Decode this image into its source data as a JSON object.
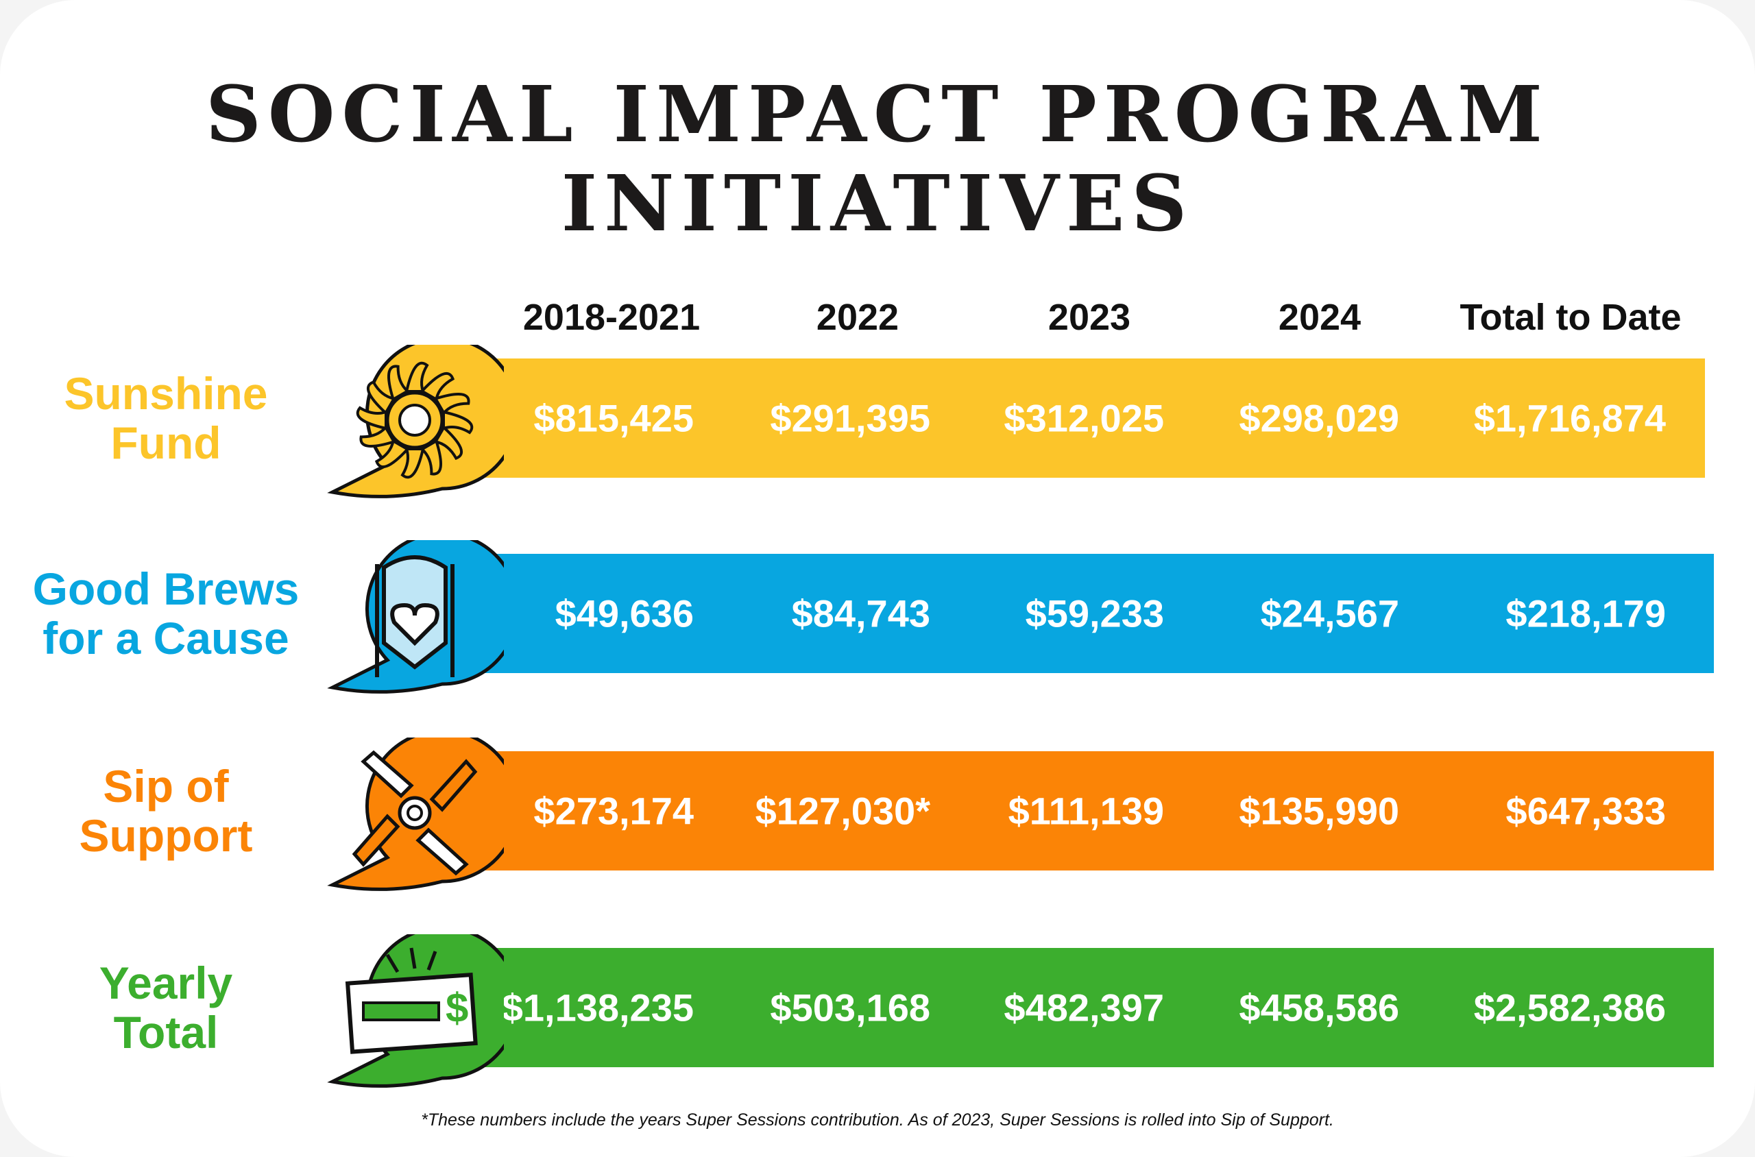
{
  "title": {
    "line1": "SOCIAL IMPACT PROGRAM",
    "line2": "INITIATIVES"
  },
  "columns": [
    "2018-2021",
    "2022",
    "2023",
    "2024",
    "Total to Date"
  ],
  "rows": [
    {
      "label1": "Sunshine",
      "label2": "Fund",
      "icon": "sun-icon",
      "color": "#FCC52A",
      "values": [
        "$815,425",
        "$291,395",
        "$312,025",
        "$298,029",
        "$1,716,874"
      ]
    },
    {
      "label1": "Good Brews",
      "label2": "for a Cause",
      "icon": "brew-tank-heart-icon",
      "color": "#08A6E0",
      "values": [
        "$49,636",
        "$84,743",
        "$59,233",
        "$24,567",
        "$218,179"
      ]
    },
    {
      "label1": "Sip of",
      "label2": "Support",
      "icon": "joined-hands-icon",
      "color": "#FB8406",
      "values": [
        "$273,174",
        "$127,030*",
        "$111,139",
        "$135,990",
        "$647,333"
      ]
    },
    {
      "label1": "Yearly",
      "label2": "Total",
      "icon": "check-dollar-icon",
      "color": "#3CAE2E",
      "values": [
        "$1,138,235",
        "$503,168",
        "$482,397",
        "$458,586",
        "$2,582,386"
      ]
    }
  ],
  "footnote": "*These numbers include the years Super Sessions contribution. As of 2023, Super Sessions is rolled into Sip of Support."
}
